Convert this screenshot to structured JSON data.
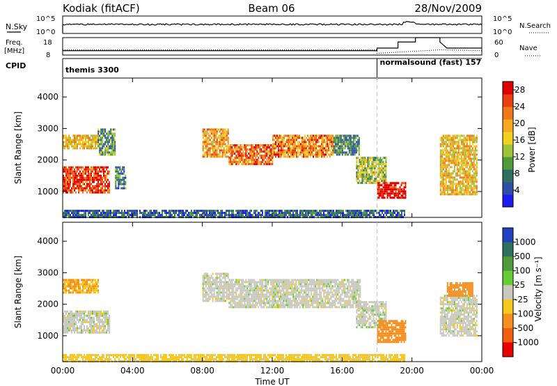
{
  "header": {
    "station": "Kodiak (fitACF)",
    "beam": "Beam 06",
    "date": "28/Nov/2009"
  },
  "top_panels": {
    "noise": {
      "left_label": "N.Sky",
      "right_label": "N.Search",
      "left_ticks": [
        "10^5",
        "10^0"
      ],
      "right_ticks": [
        "10^5",
        "10^0"
      ]
    },
    "freq": {
      "left_label_1": "Freq.",
      "left_label_2": "[MHz]",
      "left_ticks": [
        "18",
        "8"
      ],
      "right_label": "Nave",
      "right_ticks": [
        "60",
        "0"
      ]
    },
    "cpid": {
      "label": "CPID",
      "segments": [
        {
          "start_hour": 0,
          "end_hour": 18,
          "text": "themis 3300"
        },
        {
          "start_hour": 18,
          "end_hour": 24,
          "text": "normalsound (fast) 157"
        }
      ]
    }
  },
  "power_panel": {
    "ylabel": "Slant Range [km]",
    "yticks": [
      "1000",
      "2000",
      "3000",
      "4000"
    ],
    "colorbar_label": "Power [dB]",
    "colorbar_ticks": [
      "4",
      "8",
      "12",
      "16",
      "20",
      "24",
      "28"
    ],
    "colors": [
      "#1c1cf0",
      "#2e4fa8",
      "#2f6f5f",
      "#4f9a3a",
      "#9ec23a",
      "#f0d020",
      "#f5a820",
      "#f07818",
      "#e84010",
      "#e00000"
    ]
  },
  "velocity_panel": {
    "ylabel": "Slant Range [km]",
    "yticks": [
      "1000",
      "2000",
      "3000",
      "4000"
    ],
    "colorbar_label": "Velocity [m s⁻¹]",
    "colorbar_ticks": [
      "1000",
      "500",
      "100",
      "25",
      "-25",
      "-100",
      "-500",
      "-1000"
    ],
    "colors": [
      "#2040c0",
      "#2f6f5f",
      "#4f9a3a",
      "#66cc33",
      "#c8c8c0",
      "#f5c820",
      "#f59020",
      "#f06010",
      "#e80000"
    ]
  },
  "xaxis": {
    "label": "Time UT",
    "ticks": [
      "00:00",
      "04:00",
      "08:00",
      "12:00",
      "16:00",
      "20:00",
      "00:00"
    ]
  },
  "chart_data": [
    {
      "type": "heatmap",
      "title": "Power",
      "x_range_hours": [
        0,
        24
      ],
      "ylim": [
        180,
        4600
      ],
      "colorbar_range": [
        0,
        30
      ],
      "regions": [
        {
          "t0": 0.0,
          "t1": 2.7,
          "r0": 1000,
          "r1": 1800,
          "power": 26
        },
        {
          "t0": 0.0,
          "t1": 2.0,
          "r0": 2400,
          "r1": 2800,
          "power": 18
        },
        {
          "t0": 2.0,
          "t1": 3.0,
          "r0": 2200,
          "r1": 3000,
          "power": 10
        },
        {
          "t0": 3.0,
          "t1": 3.6,
          "r0": 1100,
          "r1": 1800,
          "power": 8
        },
        {
          "t0": 8.0,
          "t1": 9.5,
          "r0": 2100,
          "r1": 3000,
          "power": 20
        },
        {
          "t0": 9.5,
          "t1": 12.0,
          "r0": 1900,
          "r1": 2500,
          "power": 23
        },
        {
          "t0": 12.0,
          "t1": 15.5,
          "r0": 2100,
          "r1": 2800,
          "power": 22
        },
        {
          "t0": 15.5,
          "t1": 17.0,
          "r0": 2200,
          "r1": 2800,
          "power": 9
        },
        {
          "t0": 16.8,
          "t1": 18.5,
          "r0": 1300,
          "r1": 2100,
          "power": 14
        },
        {
          "t0": 18.0,
          "t1": 19.6,
          "r0": 800,
          "r1": 1300,
          "power": 29
        },
        {
          "t0": 21.6,
          "t1": 23.7,
          "r0": 900,
          "r1": 2800,
          "power": 18
        },
        {
          "t0": 0.0,
          "t1": 19.6,
          "r0": 200,
          "r1": 420,
          "power": 6
        }
      ]
    },
    {
      "type": "heatmap",
      "title": "Velocity",
      "x_range_hours": [
        0,
        24
      ],
      "ylim": [
        180,
        4600
      ],
      "colorbar_range": [
        -1000,
        1000
      ],
      "regions": [
        {
          "t0": 0.0,
          "t1": 2.7,
          "r0": 1100,
          "r1": 1800,
          "velocity": 0
        },
        {
          "t0": 0.0,
          "t1": 2.0,
          "r0": 2400,
          "r1": 2800,
          "velocity": -100
        },
        {
          "t0": 8.0,
          "t1": 9.5,
          "r0": 2100,
          "r1": 3000,
          "velocity": 0
        },
        {
          "t0": 9.5,
          "t1": 17.0,
          "r0": 1900,
          "r1": 2800,
          "velocity": 0
        },
        {
          "t0": 16.8,
          "t1": 18.5,
          "r0": 1300,
          "r1": 2100,
          "velocity": 0
        },
        {
          "t0": 18.0,
          "t1": 19.6,
          "r0": 800,
          "r1": 1500,
          "velocity": -150
        },
        {
          "t0": 21.6,
          "t1": 23.7,
          "r0": 1000,
          "r1": 2300,
          "velocity": 0
        },
        {
          "t0": 22.0,
          "t1": 23.5,
          "r0": 2300,
          "r1": 2700,
          "velocity": -300
        },
        {
          "t0": 0.0,
          "t1": 19.6,
          "r0": 200,
          "r1": 420,
          "velocity": -50
        }
      ]
    }
  ]
}
